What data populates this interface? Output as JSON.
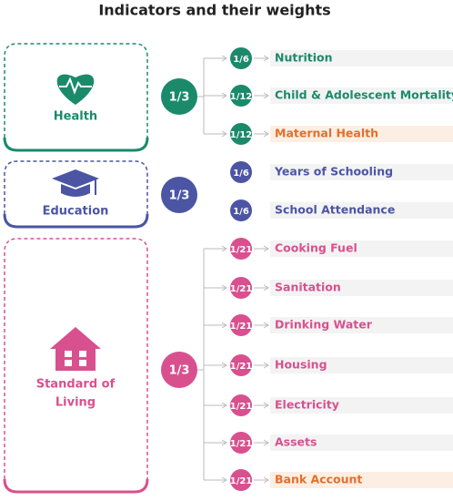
{
  "title": "Indicators and their weights",
  "groups": [
    {
      "name_lines": [
        "Health"
      ],
      "weight": "1/3",
      "color": "#1b8a6b",
      "icon": "heart",
      "indicators": [
        {
          "weight": "1/6",
          "label": "Nutrition"
        },
        {
          "weight": "1/12",
          "label": "Child & Adolescent Mortality"
        },
        {
          "weight": "1/12",
          "label": "Maternal Health",
          "color": "#e36f2a"
        }
      ]
    },
    {
      "name_lines": [
        "Education"
      ],
      "weight": "1/3",
      "color": "#4b55a3",
      "icon": "cap",
      "indicators": [
        {
          "weight": "1/6",
          "label": "Years of Schooling"
        },
        {
          "weight": "1/6",
          "label": "School Attendance"
        }
      ]
    },
    {
      "name_lines": [
        "Standard of",
        "Living"
      ],
      "weight": "1/3",
      "color": "#d9508e",
      "icon": "house",
      "indicators": [
        {
          "weight": "1/21",
          "label": "Cooking Fuel"
        },
        {
          "weight": "1/21",
          "label": "Sanitation"
        },
        {
          "weight": "1/21",
          "label": "Drinking Water"
        },
        {
          "weight": "1/21",
          "label": "Housing"
        },
        {
          "weight": "1/21",
          "label": "Electricity"
        },
        {
          "weight": "1/21",
          "label": "Assets"
        },
        {
          "weight": "1/21",
          "label": "Bank Account",
          "color": "#e36f2a"
        }
      ]
    }
  ]
}
